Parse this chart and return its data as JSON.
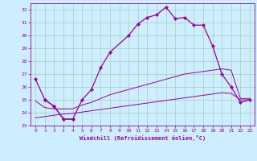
{
  "xlabel": "Windchill (Refroidissement éolien,°C)",
  "bg_color": "#cceeff",
  "grid_color": "#aaccbb",
  "line_color": "#990099",
  "xlim": [
    -0.5,
    23.5
  ],
  "ylim": [
    23,
    32.5
  ],
  "xticks": [
    0,
    1,
    2,
    3,
    4,
    5,
    6,
    7,
    8,
    9,
    10,
    11,
    12,
    13,
    14,
    15,
    16,
    17,
    18,
    19,
    20,
    21,
    22,
    23
  ],
  "yticks": [
    23,
    24,
    25,
    26,
    27,
    28,
    29,
    30,
    31,
    32
  ],
  "line1_x": [
    0,
    1,
    2,
    3,
    4,
    5,
    6,
    7,
    8,
    10,
    11,
    12,
    13,
    14,
    15,
    16,
    17,
    18,
    19,
    20,
    21,
    22,
    23
  ],
  "line1_y": [
    26.6,
    25.0,
    24.5,
    23.5,
    23.5,
    25.0,
    25.8,
    27.5,
    28.7,
    30.0,
    30.9,
    31.4,
    31.6,
    32.2,
    31.3,
    31.4,
    30.8,
    30.8,
    29.2,
    27.0,
    26.0,
    24.8,
    25.0
  ],
  "line2_x": [
    0,
    1,
    2,
    3,
    4,
    5,
    6,
    7,
    8,
    9,
    10,
    11,
    12,
    13,
    14,
    15,
    16,
    17,
    18,
    19,
    20,
    21,
    22,
    23
  ],
  "line2_y": [
    24.9,
    24.4,
    24.3,
    24.3,
    24.3,
    24.6,
    24.8,
    25.1,
    25.4,
    25.6,
    25.8,
    26.0,
    26.2,
    26.4,
    26.6,
    26.8,
    27.0,
    27.1,
    27.2,
    27.3,
    27.4,
    27.3,
    25.1,
    25.1
  ],
  "line3_x": [
    0,
    1,
    2,
    3,
    4,
    5,
    6,
    7,
    8,
    9,
    10,
    11,
    12,
    13,
    14,
    15,
    16,
    17,
    18,
    19,
    20,
    21,
    22,
    23
  ],
  "line3_y": [
    23.6,
    23.7,
    23.8,
    23.9,
    23.95,
    24.05,
    24.15,
    24.25,
    24.35,
    24.45,
    24.55,
    24.65,
    24.75,
    24.85,
    24.95,
    25.05,
    25.15,
    25.25,
    25.35,
    25.45,
    25.55,
    25.5,
    25.0,
    25.0
  ],
  "line4_x": [
    1,
    2,
    3,
    4
  ],
  "line4_y": [
    25.0,
    24.5,
    23.5,
    23.5
  ]
}
